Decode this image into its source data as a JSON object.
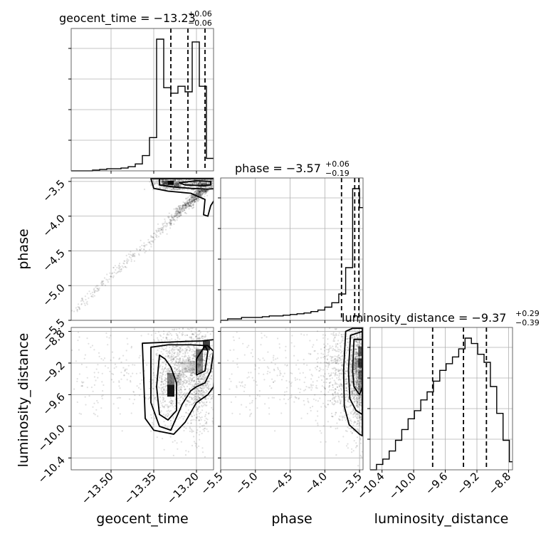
{
  "chart_data": {
    "type": "corner",
    "parameters": [
      {
        "name": "geocent_time",
        "axis_label": "geocent_time",
        "title": {
          "prefix": "geocent_time = ",
          "value": "−13.23",
          "plus": "+0.06",
          "minus": "−0.06"
        },
        "range": [
          -13.64,
          -13.14
        ],
        "ticks": [
          -13.5,
          -13.35,
          -13.2
        ],
        "tick_labels": [
          "−13.50",
          "−13.35",
          "−13.20"
        ],
        "quantiles": [
          -13.29,
          -13.23,
          -13.17
        ],
        "hist_edges": [
          -13.64,
          -13.615,
          -13.59,
          -13.565,
          -13.54,
          -13.515,
          -13.49,
          -13.465,
          -13.44,
          -13.415,
          -13.39,
          -13.365,
          -13.34,
          -13.315,
          -13.29,
          -13.265,
          -13.24,
          -13.215,
          -13.19,
          -13.165,
          -13.14
        ],
        "hist_values": [
          0,
          0,
          0,
          0.5,
          1,
          1.5,
          1.5,
          2,
          3,
          5,
          11,
          24,
          95,
          60,
          56,
          61,
          57,
          93,
          61,
          9
        ]
      },
      {
        "name": "phase",
        "axis_label": "phase",
        "title": {
          "prefix": "phase = ",
          "value": "−3.57",
          "plus": "+0.06",
          "minus": "−0.19"
        },
        "range": [
          -5.5,
          -3.45
        ],
        "ticks": [
          -5.5,
          -5.0,
          -4.5,
          -4.0,
          -3.5
        ],
        "tick_labels": [
          "−5.5",
          "−5.0",
          "−4.5",
          "−4.0",
          "−3.5"
        ],
        "quantiles": [
          -3.76,
          -3.57,
          -3.51
        ],
        "hist_edges": [
          -5.5,
          -5.4,
          -5.3,
          -5.2,
          -5.1,
          -5.0,
          -4.9,
          -4.8,
          -4.7,
          -4.6,
          -4.5,
          -4.4,
          -4.3,
          -4.2,
          -4.1,
          -4.0,
          -3.9,
          -3.8,
          -3.7,
          -3.6,
          -3.5,
          -3.45
        ],
        "hist_values": [
          0,
          1,
          1,
          2,
          2,
          2,
          2.5,
          3,
          3,
          3.5,
          4,
          4.5,
          5,
          6,
          7,
          9,
          12,
          18,
          36,
          90,
          77
        ]
      },
      {
        "name": "luminosity_distance",
        "axis_label": "luminosity_distance",
        "title": {
          "prefix": "luminosity_distance = ",
          "value": "−9.37",
          "plus": "+0.29",
          "minus": "−0.39"
        },
        "range": [
          -10.55,
          -8.75
        ],
        "ticks": [
          -10.4,
          -10.0,
          -9.6,
          -9.2,
          -8.8
        ],
        "tick_labels": [
          "−10.4",
          "−10.0",
          "−9.6",
          "−9.2",
          "−8.8"
        ],
        "quantiles": [
          -9.76,
          -9.37,
          -9.08
        ],
        "hist_edges": [
          -10.55,
          -10.47,
          -10.39,
          -10.31,
          -10.23,
          -10.15,
          -10.07,
          -9.99,
          -9.91,
          -9.83,
          -9.75,
          -9.67,
          -9.59,
          -9.51,
          -9.43,
          -9.35,
          -9.27,
          -9.19,
          -9.11,
          -9.03,
          -8.95,
          -8.87,
          -8.79,
          -8.75
        ],
        "hist_values": [
          0,
          4,
          8,
          14,
          22,
          30,
          38,
          44,
          52,
          58,
          66,
          74,
          79,
          84,
          90,
          98,
          94,
          86,
          80,
          62,
          42,
          22,
          6
        ]
      }
    ],
    "pairs": [
      {
        "x": "geocent_time",
        "y": "phase",
        "density_note": "strong correlation, peak near (-13.29, -3.52)"
      },
      {
        "x": "geocent_time",
        "y": "luminosity_distance"
      },
      {
        "x": "phase",
        "y": "luminosity_distance"
      }
    ],
    "grid": true
  }
}
